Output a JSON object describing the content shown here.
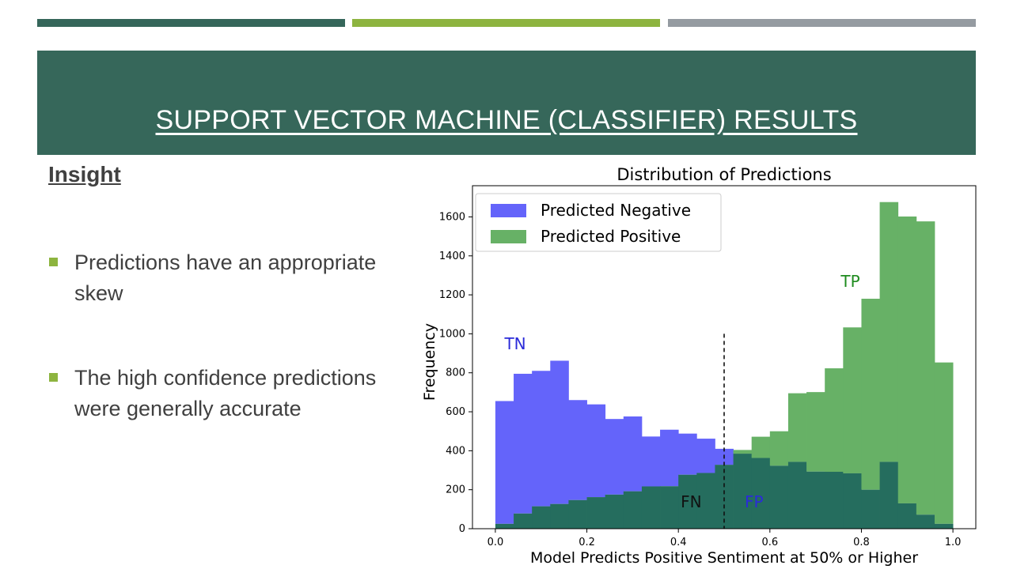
{
  "slide": {
    "title": "SUPPORT VECTOR MACHINE (CLASSIFIER) RESULTS",
    "insight_heading": "Insight",
    "bullets": [
      "Predictions have an appropriate skew",
      "The high confidence predictions were generally accurate"
    ],
    "colors": {
      "strip_dark": "#35665A",
      "strip_green": "#8DB43F",
      "strip_gray": "#959BA1",
      "banner": "#36675A",
      "bullet_marker": "#8DB43F"
    }
  },
  "chart_data": {
    "type": "histogram",
    "title": "Distribution of Predictions",
    "xlabel": "Model Predicts Positive Sentiment at 50% or Higher",
    "ylabel": "Frequency",
    "xlim": [
      -0.05,
      1.05
    ],
    "ylim": [
      0,
      1760
    ],
    "xticks": [
      0.0,
      0.2,
      0.4,
      0.6,
      0.8,
      1.0
    ],
    "xtick_labels": [
      "0.0",
      "0.2",
      "0.4",
      "0.6",
      "0.8",
      "1.0"
    ],
    "yticks": [
      0,
      200,
      400,
      600,
      800,
      1000,
      1200,
      1400,
      1600
    ],
    "grid": false,
    "legend_position": "top-left",
    "threshold": 0.5,
    "threshold_style": "dashed",
    "bin_edges": [
      0.0,
      0.04,
      0.08,
      0.12,
      0.16,
      0.2,
      0.24,
      0.28,
      0.32,
      0.36,
      0.4,
      0.44,
      0.48,
      0.52,
      0.56,
      0.6,
      0.64,
      0.68,
      0.72,
      0.76,
      0.8,
      0.84,
      0.88,
      0.92,
      0.96,
      1.0
    ],
    "series": [
      {
        "name": "Predicted Negative",
        "color": "#6464FA",
        "values": [
          655,
          795,
          810,
          862,
          660,
          638,
          563,
          576,
          473,
          508,
          488,
          462,
          410,
          385,
          363,
          323,
          343,
          293,
          292,
          284,
          200,
          343,
          130,
          72,
          25
        ]
      },
      {
        "name": "Predicted Positive",
        "color": "#67B166",
        "values": [
          25,
          78,
          115,
          127,
          147,
          162,
          175,
          192,
          217,
          218,
          277,
          286,
          328,
          404,
          472,
          500,
          695,
          701,
          823,
          1033,
          1180,
          1676,
          1602,
          1577,
          853
        ]
      }
    ],
    "overlap_color": "#256D5E",
    "annotations": [
      {
        "text": "TN",
        "x": 0.02,
        "y": 920,
        "color": "#2B2BD9"
      },
      {
        "text": "FN",
        "x": 0.405,
        "y": 110,
        "color": "#111111"
      },
      {
        "text": "FP",
        "x": 0.545,
        "y": 110,
        "color": "#2B2BD9"
      },
      {
        "text": "TP",
        "x": 0.755,
        "y": 1240,
        "color": "#1E8B1E"
      }
    ]
  }
}
